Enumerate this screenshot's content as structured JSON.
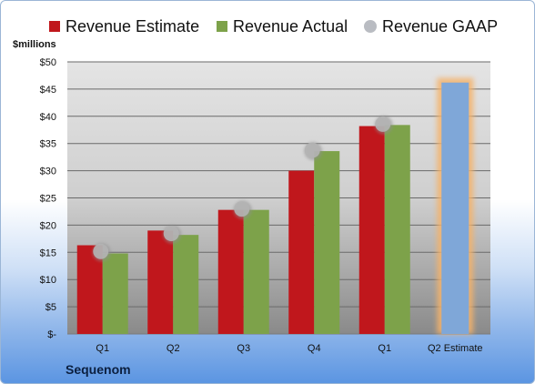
{
  "legend": {
    "estimate": "Revenue Estimate",
    "actual": "Revenue Actual",
    "gaap": "Revenue GAAP"
  },
  "unit_label": "$millions",
  "company": "Sequenom",
  "colors": {
    "estimate": "#c0171c",
    "actual": "#7da24a",
    "gaap": "#b4b4b4",
    "q2_estimate": "#7fa7d8",
    "q2_glow": "#f4b26b"
  },
  "chart_data": {
    "type": "bar",
    "categories": [
      "Q1",
      "Q2",
      "Q3",
      "Q4",
      "Q1",
      "Q2 Estimate"
    ],
    "yticks": [
      "$-",
      "$5",
      "$10",
      "$15",
      "$20",
      "$25",
      "$30",
      "$35",
      "$40",
      "$45",
      "$50"
    ],
    "ylim": [
      0,
      50
    ],
    "ylabel": "$millions",
    "grid": true,
    "legend_position": "top",
    "series": [
      {
        "name": "Revenue Estimate",
        "values": [
          16.3,
          19.0,
          22.8,
          30.0,
          38.2,
          null
        ]
      },
      {
        "name": "Revenue Actual",
        "values": [
          14.8,
          18.2,
          22.8,
          33.6,
          38.4,
          null
        ]
      },
      {
        "name": "Revenue GAAP",
        "values": [
          15.0,
          18.3,
          22.8,
          33.6,
          38.4,
          null
        ]
      }
    ],
    "forecast": {
      "category": "Q2 Estimate",
      "value": 46.2
    }
  }
}
